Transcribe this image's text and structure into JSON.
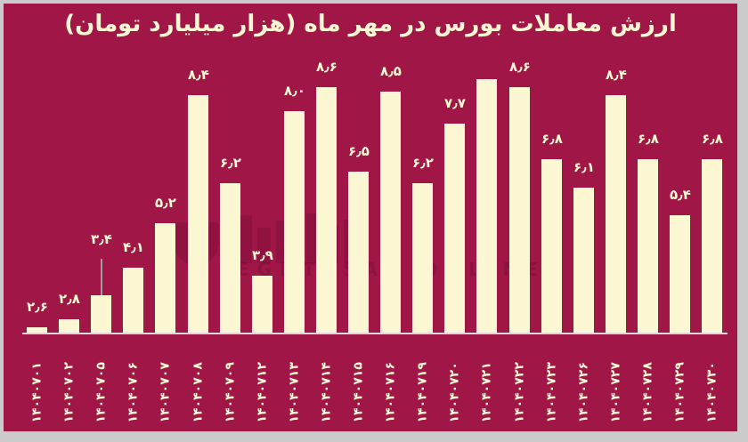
{
  "page": {
    "background_color": "#CBCBCB",
    "canvas_color": "#A01647",
    "bar_color": "#FBF7D2",
    "text_color": "#FBF7D2",
    "axis_color": "#D8D8D8",
    "leader_line_color": "#9E9E9E"
  },
  "title": "ارزش معاملات بورس در مهر ماه (هزار میلیارد تومان)",
  "watermark": {
    "text": "EGHTESAD ONLINE"
  },
  "chart_data": {
    "type": "bar",
    "title": "ارزش معاملات بورس در مهر ماه (هزار میلیارد تومان)",
    "xlabel": "",
    "ylabel": "هزار میلیارد تومان",
    "categories": [
      "۱۴۰۴۰۷۰۱",
      "۱۴۰۴۰۷۰۲",
      "۱۴۰۴۰۷۰۵",
      "۱۴۰۴۰۷۰۶",
      "۱۴۰۴۰۷۰۷",
      "۱۴۰۴۰۷۰۸",
      "۱۴۰۴۰۷۰۹",
      "۱۴۰۴۰۷۱۲",
      "۱۴۰۴۰۷۱۳",
      "۱۴۰۴۰۷۱۴",
      "۱۴۰۴۰۷۱۵",
      "۱۴۰۴۰۷۱۶",
      "۱۴۰۴۰۷۱۹",
      "۱۴۰۴۰۷۲۰",
      "۱۴۰۴۰۷۲۱",
      "۱۴۰۴۰۷۲۲",
      "۱۴۰۴۰۷۲۳",
      "۱۴۰۴۰۷۲۶",
      "۱۴۰۴۰۷۲۷",
      "۱۴۰۴۰۷۲۸",
      "۱۴۰۴۰۷۲۹",
      "۱۴۰۴۰۷۳۰"
    ],
    "values": [
      2.6,
      2.8,
      3.4,
      4.1,
      5.2,
      8.4,
      6.2,
      3.9,
      8.0,
      8.6,
      6.5,
      8.5,
      6.2,
      7.7,
      8.8,
      8.6,
      6.8,
      6.1,
      8.4,
      6.8,
      5.4,
      6.8
    ],
    "data_labels": [
      "۲٫۶",
      "۲٫۸",
      "۳٫۴",
      "۴٫۱",
      "۵٫۲",
      "۸٫۴",
      "۶٫۲",
      "۳٫۹",
      "۸٫۰",
      "۸٫۶",
      "۶٫۵",
      "۸٫۵",
      "۶٫۲",
      "۷٫۷",
      "",
      "۸٫۶",
      "۶٫۸",
      "۶٫۱",
      "۸٫۴",
      "۶٫۸",
      "۵٫۴",
      "۶٫۸"
    ],
    "callout_indexes": [
      2
    ],
    "ylim": [
      2.45,
      9.0
    ],
    "grid": false,
    "legend": false,
    "bar_color": "#FBF7D2"
  }
}
